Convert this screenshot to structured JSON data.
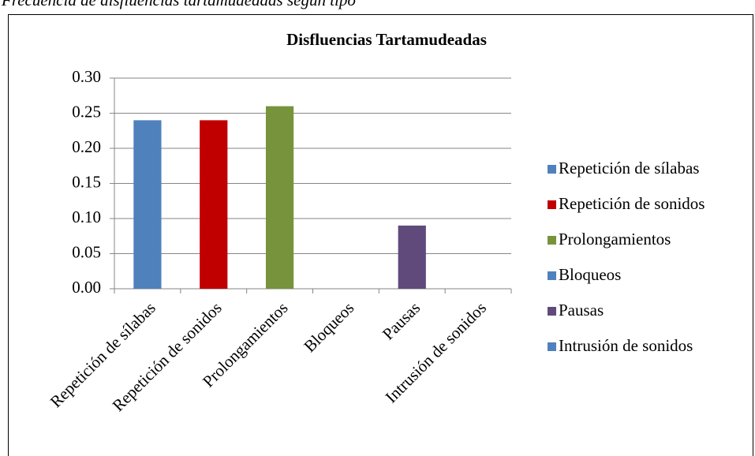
{
  "chart_data": {
    "type": "bar",
    "caption": "Frecuencia de disfluencias tartamudeadas según tipo",
    "title": "Disfluencias Tartamudeadas",
    "categories": [
      "Repetición de sílabas",
      "Repetición de sonidos",
      "Prolongamientos",
      "Bloqueos",
      "Pausas",
      "Intrusión de sonidos"
    ],
    "values": [
      0.24,
      0.24,
      0.26,
      0,
      0.09,
      0
    ],
    "colors": [
      "#4f81bd",
      "#c00000",
      "#77933c",
      "#4f81bd",
      "#604a7b",
      "#4f81bd"
    ],
    "ylim": [
      0,
      0.3
    ],
    "yticks": [
      {
        "value": 0,
        "label": "0.00"
      },
      0.05,
      {
        "value": 0.1,
        "label": "0.10"
      },
      0.15,
      {
        "value": 0.2,
        "label": "0.20"
      },
      0.25,
      {
        "value": 0.3,
        "label": "0.30"
      }
    ],
    "grid": true,
    "legend": "right"
  }
}
